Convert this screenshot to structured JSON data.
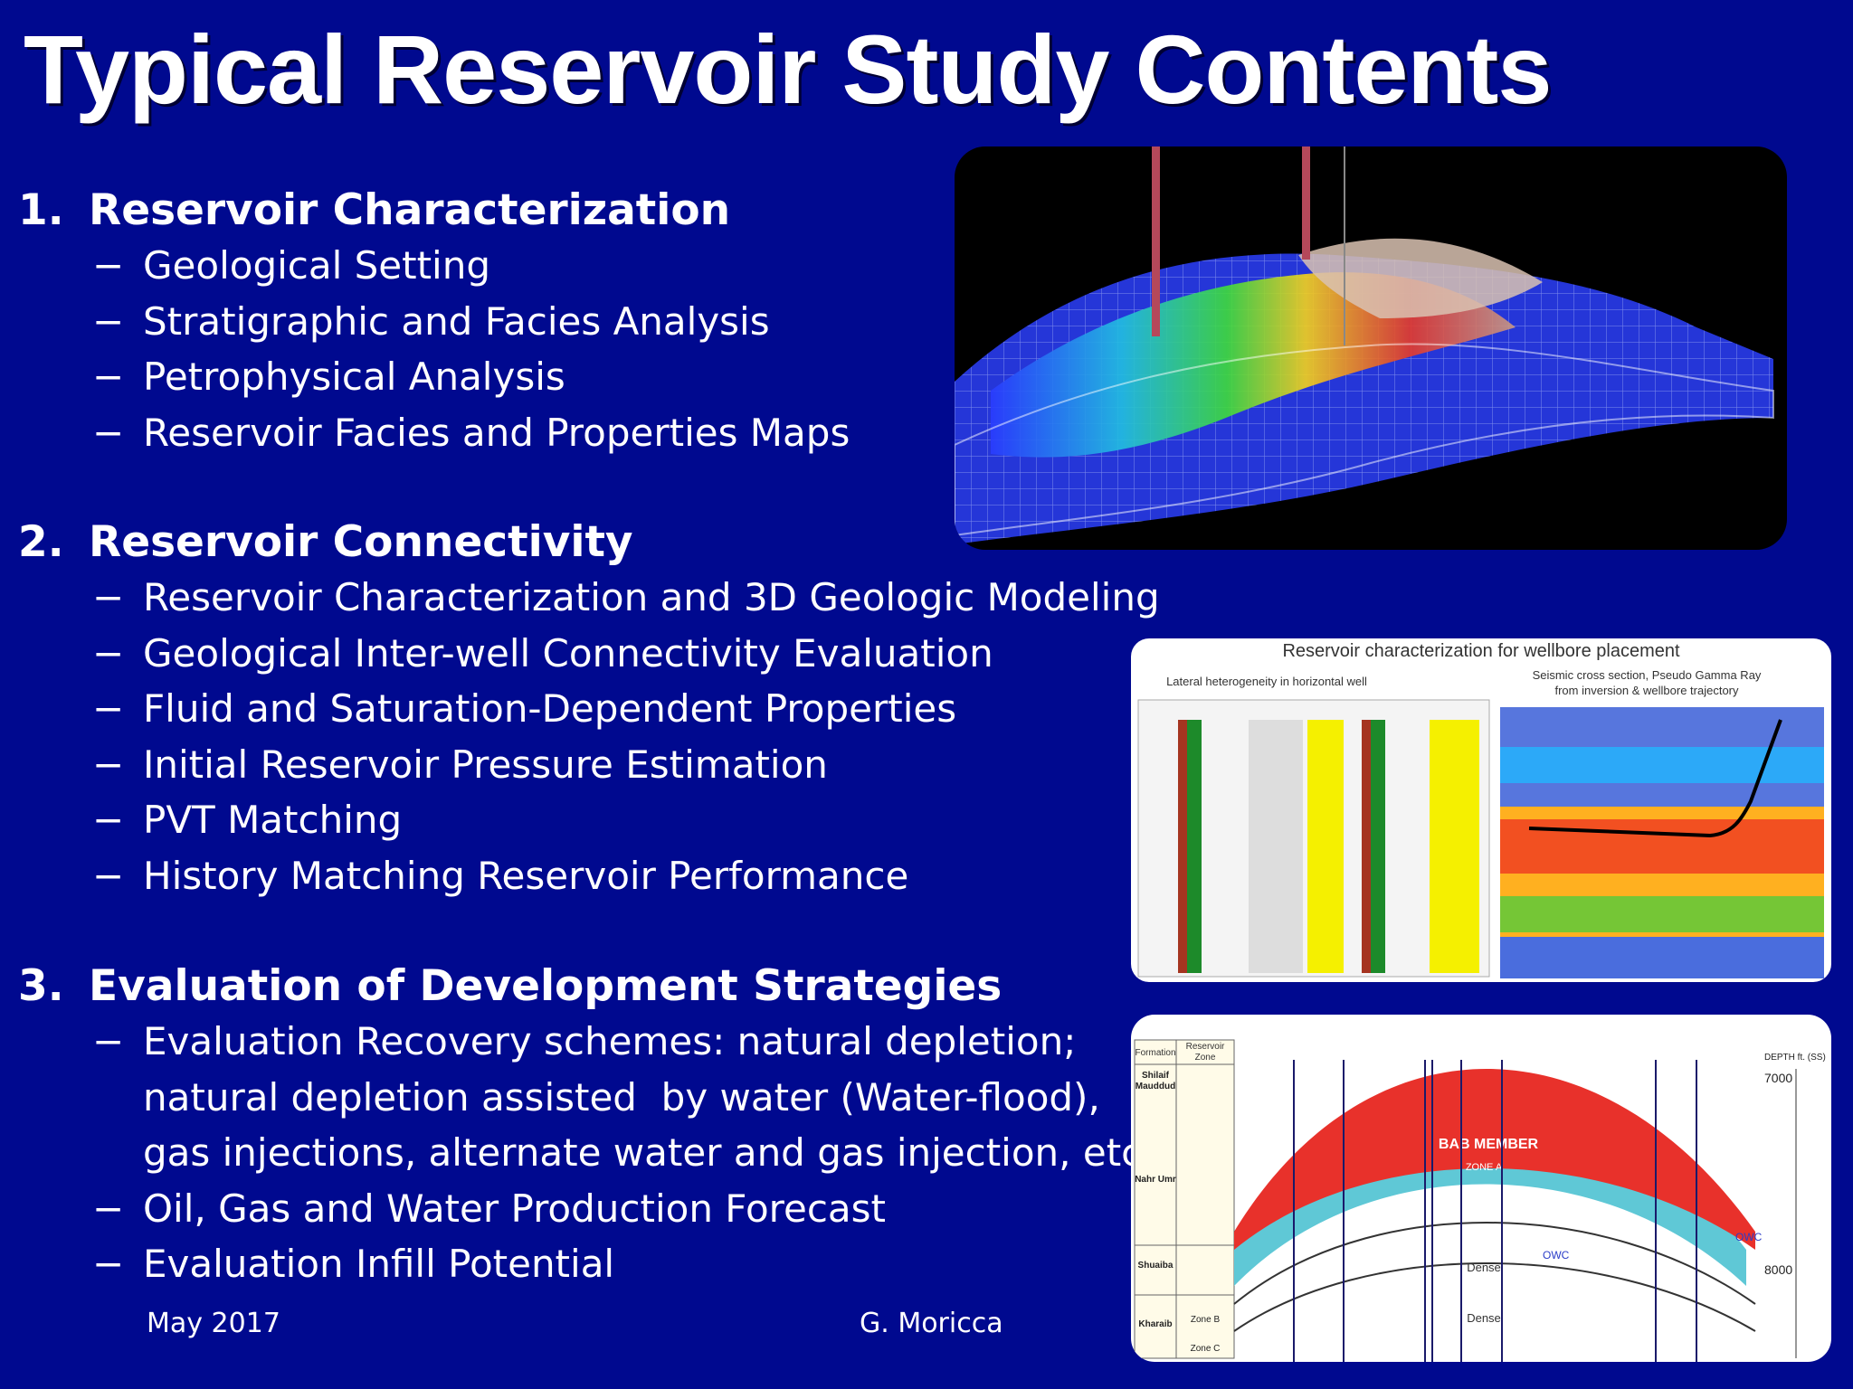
{
  "slide": {
    "title": "Typical Reservoir Study Contents",
    "sections": [
      {
        "number": "1.",
        "heading": "Reservoir Characterization",
        "items": [
          "Geological Setting",
          "Stratigraphic and Facies Analysis",
          "Petrophysical Analysis",
          "Reservoir Facies and Properties Maps"
        ]
      },
      {
        "number": "2.",
        "heading": "Reservoir Connectivity",
        "items": [
          "Reservoir Characterization and 3D Geologic Modeling",
          "Geological Inter-well Connectivity Evaluation",
          "Fluid and Saturation-Dependent Properties",
          "Initial Reservoir Pressure Estimation",
          "PVT Matching",
          "History Matching Reservoir Performance"
        ]
      },
      {
        "number": "3.",
        "heading": "Evaluation of Development Strategies",
        "items": [
          "Evaluation Recovery schemes: natural depletion;",
          "natural depletion assisted  by water (Water-flood),",
          "gas injections, alternate water and gas injection, etc.",
          "Oil, Gas and Water Production Forecast",
          "Evaluation Infill Potential"
        ]
      }
    ],
    "bullet_dash": "−",
    "footer": {
      "date": "May 2017",
      "author": "G. Moricca"
    }
  },
  "figures": {
    "model_3d": {},
    "wellbore": {
      "title": "Reservoir characterization for wellbore placement",
      "left_caption": "Lateral heterogeneity in horizontal well",
      "right_caption_1": "Seismic cross section, Pseudo Gamma Ray",
      "right_caption_2": "from inversion & wellbore trajectory"
    },
    "cross_section": {
      "col_formation": "Formation",
      "col_reservoir": "Reservoir",
      "col_zone": "Zone",
      "formations": [
        "Shilaif",
        "Mauddud",
        "Nahr Umr",
        "Shuaiba",
        "Kharaib"
      ],
      "zone_labels": [
        "Zone B",
        "Zone C"
      ],
      "depth_label": "DEPTH ft. (SS)",
      "depth_7000": "7000",
      "depth_8000": "8000",
      "bab_member": "BAB MEMBER",
      "zone_a": "ZONE A",
      "zone_b": "ZONE B",
      "zone_c": "ZONE C",
      "owc_left": "OWC",
      "owc_right": "OWC",
      "dense_1": "Dense",
      "dense_2": "Dense"
    }
  },
  "colors": {
    "background": "#00098f",
    "text": "#ffffff",
    "oil_zone": "#e8312b",
    "water_zone": "#5fc8d6",
    "figure_bg": "#ffffff"
  }
}
